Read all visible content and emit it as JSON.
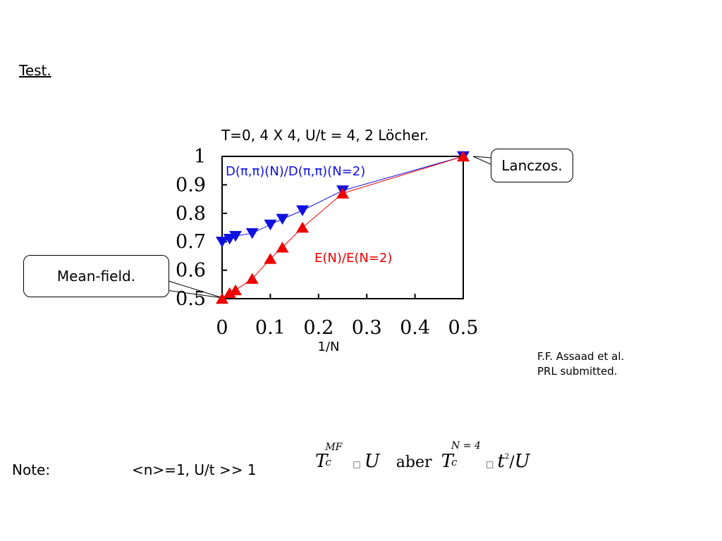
{
  "heading": "Test.",
  "chart_data": {
    "type": "line",
    "title": "T=0, 4 X 4, U/t = 4, 2 Löcher.",
    "xlabel": "1/N",
    "ylabel": "",
    "xlim": [
      0,
      0.5
    ],
    "ylim": [
      0.5,
      1
    ],
    "x_ticks": [
      "0",
      "0.1",
      "0.2",
      "0.3",
      "0.4",
      "0.5"
    ],
    "y_ticks": [
      "0.5",
      "0.6",
      "0.7",
      "0.8",
      "0.9",
      "1"
    ],
    "grid": false,
    "series": [
      {
        "name": "D(π,π)(N)/D(π,π)(N=2)",
        "color": "#1010e0",
        "marker": "triangle-down",
        "x": [
          0,
          0.0156,
          0.0278,
          0.0625,
          0.1,
          0.125,
          0.1667,
          0.25,
          0.5
        ],
        "y": [
          0.7,
          0.71,
          0.72,
          0.73,
          0.76,
          0.78,
          0.81,
          0.88,
          1.0
        ]
      },
      {
        "name": "E(N)/E(N=2)",
        "color": "#ee0000",
        "marker": "triangle-up",
        "x": [
          0,
          0.0156,
          0.0278,
          0.0625,
          0.1,
          0.125,
          0.1667,
          0.25,
          0.5
        ],
        "y": [
          0.5,
          0.52,
          0.53,
          0.57,
          0.64,
          0.68,
          0.75,
          0.87,
          1.0
        ]
      }
    ]
  },
  "callouts": {
    "lanczos": "Lanczos.",
    "meanfield": "Mean-field."
  },
  "citation": {
    "line1": "F.F. Assaad et al.",
    "line2": "PRL submitted."
  },
  "note": {
    "label": "Note:",
    "condition": "<n>=1, U/t >> 1",
    "formula": {
      "t1": "T",
      "sub1": "c",
      "sup1": "MF",
      "u1": "U",
      "aber": "aber",
      "t2": "T",
      "sub2": "c",
      "sup2": "N = 4",
      "tvar": "t",
      "tpow": "2",
      "slash": "/",
      "u2": "U",
      "prop": "□"
    }
  }
}
